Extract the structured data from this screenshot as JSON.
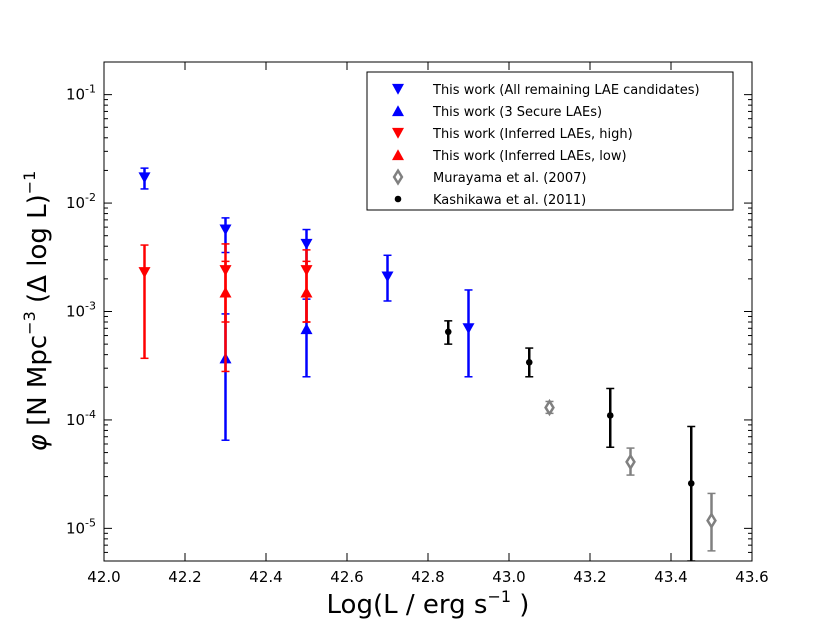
{
  "chart_data": {
    "type": "scatter",
    "title": "",
    "xlabel": {
      "base": "Log(L / erg s",
      "sup": "−1",
      "tail": " )"
    },
    "ylabel": {
      "sym": "φ",
      "pre": " [N Mpc",
      "sup1": "−3",
      "mid": "  (Δ log L)",
      "sup2": "−1"
    },
    "xlim": [
      42.0,
      43.6
    ],
    "ylim": [
      5e-06,
      0.2
    ],
    "yscale": "log",
    "grid": false,
    "legend_position": "top-right",
    "x_ticks": [
      "42.0",
      "42.2",
      "42.4",
      "42.6",
      "42.8",
      "43.0",
      "43.2",
      "43.4",
      "43.6"
    ],
    "x_tick_values": [
      42.0,
      42.2,
      42.4,
      42.6,
      42.8,
      43.0,
      43.2,
      43.4,
      43.6
    ],
    "y_ticks": [
      {
        "value": 0.1,
        "base": "10",
        "exp": "-1"
      },
      {
        "value": 0.01,
        "base": "10",
        "exp": "-2"
      },
      {
        "value": 0.001,
        "base": "10",
        "exp": "-3"
      },
      {
        "value": 0.0001,
        "base": "10",
        "exp": "-4"
      },
      {
        "value": 1e-05,
        "base": "10",
        "exp": "-5"
      }
    ],
    "series": [
      {
        "name": "This work (All remaining LAE candidates)",
        "marker": "triangle-down",
        "color": "#0000ff",
        "points": [
          {
            "x": 42.1,
            "y": 0.0172,
            "ylo": 0.0135,
            "yhi": 0.021
          },
          {
            "x": 42.3,
            "y": 0.0057,
            "ylo": 0.0035,
            "yhi": 0.0073
          },
          {
            "x": 42.5,
            "y": 0.0042,
            "ylo": 0.0025,
            "yhi": 0.0057
          },
          {
            "x": 42.7,
            "y": 0.0021,
            "ylo": 0.00125,
            "yhi": 0.0033
          },
          {
            "x": 42.9,
            "y": 0.0007,
            "ylo": 0.00025,
            "yhi": 0.00158
          }
        ]
      },
      {
        "name": "This work (3 Secure LAEs)",
        "marker": "triangle-up",
        "color": "#0000ff",
        "points": [
          {
            "x": 42.3,
            "y": 0.00037,
            "ylo": 6.5e-05,
            "yhi": 0.00095
          },
          {
            "x": 42.5,
            "y": 0.00069,
            "ylo": 0.00025,
            "yhi": 0.0013
          }
        ]
      },
      {
        "name": "This work (Inferred LAEs, high)",
        "marker": "triangle-down",
        "color": "#ff0000",
        "points": [
          {
            "x": 42.1,
            "y": 0.0023,
            "ylo": 0.00037,
            "yhi": 0.0041
          },
          {
            "x": 42.3,
            "y": 0.0024,
            "ylo": 0.0008,
            "yhi": 0.0042
          },
          {
            "x": 42.5,
            "y": 0.0024,
            "ylo": 0.0008,
            "yhi": 0.0037
          }
        ]
      },
      {
        "name": "This work (Inferred LAEs, low)",
        "marker": "triangle-up",
        "color": "#ff0000",
        "points": [
          {
            "x": 42.3,
            "y": 0.0015,
            "ylo": 0.00028,
            "yhi": 0.0029
          },
          {
            "x": 42.5,
            "y": 0.0015,
            "ylo": 0.0008,
            "yhi": 0.0029
          }
        ]
      },
      {
        "name": "Murayama et al. (2007)",
        "marker": "diamond-open",
        "color": "#808080",
        "points": [
          {
            "x": 43.1,
            "y": 0.00013,
            "ylo": 0.000115,
            "yhi": 0.000148
          },
          {
            "x": 43.3,
            "y": 4.1e-05,
            "ylo": 3.1e-05,
            "yhi": 5.5e-05
          },
          {
            "x": 43.5,
            "y": 1.18e-05,
            "ylo": 6.2e-06,
            "yhi": 2.1e-05
          }
        ]
      },
      {
        "name": "Kashikawa et al. (2011)",
        "marker": "circle",
        "color": "#000000",
        "points": [
          {
            "x": 42.85,
            "y": 0.00065,
            "ylo": 0.0005,
            "yhi": 0.00082
          },
          {
            "x": 43.05,
            "y": 0.00034,
            "ylo": 0.00025,
            "yhi": 0.00046
          },
          {
            "x": 43.25,
            "y": 0.00011,
            "ylo": 5.6e-05,
            "yhi": 0.000195
          },
          {
            "x": 43.45,
            "y": 2.6e-05,
            "ylo": 5e-06,
            "yhi": 8.7e-05
          }
        ]
      }
    ]
  }
}
